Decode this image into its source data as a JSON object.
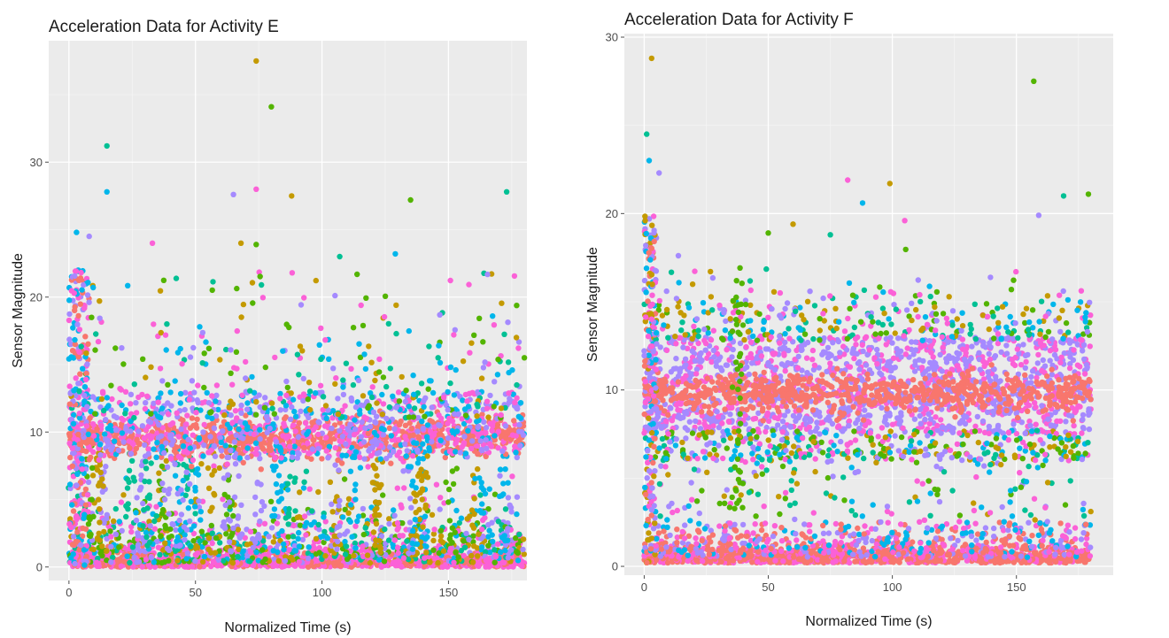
{
  "chart_data": [
    {
      "type": "scatter",
      "title": "Acceleration Data for Activity E",
      "xlabel": "Normalized Time (s)",
      "ylabel": "Sensor Magnitude",
      "xlim": [
        -8,
        181
      ],
      "ylim": [
        -1,
        39
      ],
      "x_ticks": [
        0,
        50,
        100,
        150
      ],
      "y_ticks": [
        0,
        10,
        20,
        30
      ],
      "x_tick_labels": [
        "0",
        "50",
        "100",
        "150"
      ],
      "y_tick_labels": [
        "0",
        "10",
        "20",
        "30"
      ],
      "grid": true,
      "legend": "none",
      "series_colors": [
        "#F8766D",
        "#C49A00",
        "#53B400",
        "#00C094",
        "#00B6EB",
        "#A58AFF",
        "#FB61D7"
      ],
      "highlighted_points": [
        {
          "x": 74,
          "y": 37.5
        },
        {
          "x": 80,
          "y": 34.1
        },
        {
          "x": 15,
          "y": 31.2
        },
        {
          "x": 15,
          "y": 27.8
        },
        {
          "x": 65,
          "y": 27.6
        },
        {
          "x": 74,
          "y": 28.0
        },
        {
          "x": 88,
          "y": 27.5
        },
        {
          "x": 135,
          "y": 27.2
        },
        {
          "x": 173,
          "y": 27.8
        },
        {
          "x": 3,
          "y": 24.8
        },
        {
          "x": 8,
          "y": 24.5
        },
        {
          "x": 33,
          "y": 24.0
        },
        {
          "x": 68,
          "y": 24.0
        },
        {
          "x": 74,
          "y": 23.9
        },
        {
          "x": 107,
          "y": 23.0
        },
        {
          "x": 129,
          "y": 23.2
        }
      ]
    },
    {
      "type": "scatter",
      "title": "Acceleration Data for Activity F",
      "xlabel": "Normalized Time (s)",
      "ylabel": "Sensor Magnitude",
      "xlim": [
        -8,
        189
      ],
      "ylim": [
        -0.5,
        30.2
      ],
      "x_ticks": [
        0,
        50,
        100,
        150
      ],
      "y_ticks": [
        0,
        10,
        20,
        30
      ],
      "x_tick_labels": [
        "0",
        "50",
        "100",
        "150"
      ],
      "y_tick_labels": [
        "0",
        "10",
        "20",
        "30"
      ],
      "grid": true,
      "legend": "none",
      "series_colors": [
        "#F8766D",
        "#C49A00",
        "#53B400",
        "#00C094",
        "#00B6EB",
        "#A58AFF",
        "#FB61D7"
      ],
      "highlighted_points": [
        {
          "x": 3,
          "y": 28.8
        },
        {
          "x": 157,
          "y": 27.5
        },
        {
          "x": 1,
          "y": 24.5
        },
        {
          "x": 2,
          "y": 23.0
        },
        {
          "x": 6,
          "y": 22.3
        },
        {
          "x": 82,
          "y": 21.9
        },
        {
          "x": 99,
          "y": 21.7
        },
        {
          "x": 179,
          "y": 21.1
        },
        {
          "x": 169,
          "y": 21.0
        },
        {
          "x": 88,
          "y": 20.6
        },
        {
          "x": 159,
          "y": 19.9
        },
        {
          "x": 105,
          "y": 19.6
        },
        {
          "x": 60,
          "y": 19.4
        },
        {
          "x": 50,
          "y": 18.9
        },
        {
          "x": 75,
          "y": 18.8
        }
      ]
    }
  ]
}
